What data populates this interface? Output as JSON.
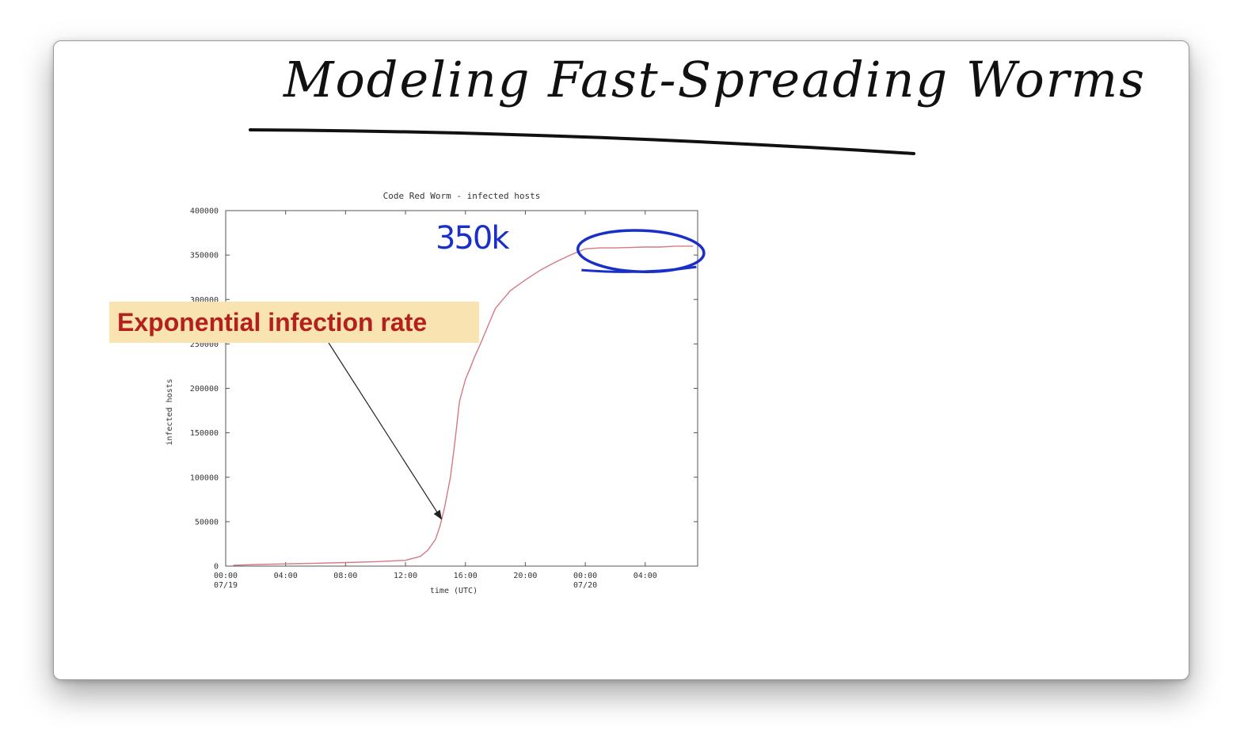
{
  "slide": {
    "handwritten_title": "Modeling Fast-Spreading Worms",
    "handwritten_note": "350k",
    "callout_text": "Exponential infection rate"
  },
  "colors": {
    "series_line": "#d47a86",
    "callout_bg": "#f9e3b0",
    "callout_text": "#b4201d",
    "annotation_ink": "#1a2fc8",
    "title_ink": "#111111"
  },
  "chart_data": {
    "type": "line",
    "title": "Code Red Worm - infected hosts",
    "xlabel": "time (UTC)",
    "ylabel": "infected hosts",
    "ylim": [
      0,
      400000
    ],
    "xlim": [
      0,
      31.5
    ],
    "grid": false,
    "y_ticks": [
      {
        "value": 0,
        "label": "0"
      },
      {
        "value": 50000,
        "label": "50000"
      },
      {
        "value": 100000,
        "label": "100000"
      },
      {
        "value": 150000,
        "label": "150000"
      },
      {
        "value": 200000,
        "label": "200000"
      },
      {
        "value": 250000,
        "label": "250000"
      },
      {
        "value": 300000,
        "label": "300000"
      },
      {
        "value": 350000,
        "label": "350000"
      },
      {
        "value": 400000,
        "label": "400000"
      }
    ],
    "x_ticks": [
      {
        "value": 0,
        "label": "00:00",
        "sublabel": "07/19"
      },
      {
        "value": 4,
        "label": "04:00",
        "sublabel": ""
      },
      {
        "value": 8,
        "label": "08:00",
        "sublabel": ""
      },
      {
        "value": 12,
        "label": "12:00",
        "sublabel": ""
      },
      {
        "value": 16,
        "label": "16:00",
        "sublabel": ""
      },
      {
        "value": 20,
        "label": "20:00",
        "sublabel": ""
      },
      {
        "value": 24,
        "label": "00:00",
        "sublabel": "07/20"
      },
      {
        "value": 28,
        "label": "04:00",
        "sublabel": ""
      }
    ],
    "series": [
      {
        "x": [
          0.5,
          2,
          4,
          6,
          8,
          10,
          12,
          13,
          13.5,
          14,
          14.3,
          14.6,
          15,
          15.3,
          15.6,
          16,
          16.3,
          16.6,
          17,
          17.5,
          18,
          18.5,
          19,
          20,
          21,
          22,
          23,
          24,
          25,
          26,
          27,
          28,
          29,
          30,
          31.2
        ],
        "y": [
          1000,
          1800,
          2500,
          3200,
          4000,
          5000,
          6500,
          11000,
          18000,
          30000,
          45000,
          65000,
          100000,
          140000,
          185000,
          210000,
          222000,
          235000,
          250000,
          270000,
          290000,
          300000,
          310000,
          322000,
          333000,
          342000,
          350000,
          357000,
          358000,
          358000,
          358500,
          359000,
          359000,
          360000,
          360000
        ]
      }
    ],
    "annotation_arrow": {
      "label": "Exponential infection rate",
      "points_to": {
        "x": 14.4,
        "y": 53000
      }
    },
    "highlight": {
      "label": "350k",
      "x_range": [
        23.5,
        31.5
      ],
      "y_center": 358000
    }
  }
}
